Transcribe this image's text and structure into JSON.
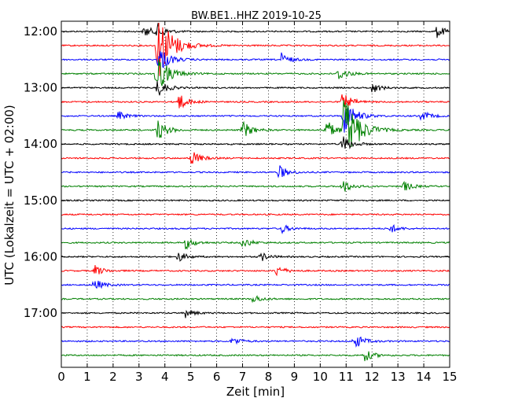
{
  "chart_data": {
    "type": "line",
    "title": "BW.BE1..HHZ 2019-10-25",
    "xlabel": "Zeit  [min]",
    "ylabel": "UTC (Lokalzeit = UTC + 02:00)",
    "xlim": [
      0,
      15
    ],
    "x_ticks": [
      "0",
      "1",
      "2",
      "3",
      "4",
      "5",
      "6",
      "7",
      "8",
      "9",
      "10",
      "11",
      "12",
      "13",
      "14",
      "15"
    ],
    "y_tick_labels": [
      "12:00",
      "13:00",
      "14:00",
      "15:00",
      "16:00",
      "17:00"
    ],
    "grid": true,
    "series_colors": [
      "#000000",
      "#ff0000",
      "#0000ff",
      "#008000"
    ],
    "traces": [
      {
        "start": "12:00",
        "events": [
          {
            "x": 3.2,
            "amp": 0.35
          },
          {
            "x": 3.7,
            "amp": 0.4
          },
          {
            "x": 14.5,
            "amp": 0.35
          }
        ]
      },
      {
        "start": "12:15",
        "events": [
          {
            "x": 3.7,
            "amp": 2.0
          }
        ]
      },
      {
        "start": "12:30",
        "events": [
          {
            "x": 3.75,
            "amp": 0.8
          },
          {
            "x": 8.5,
            "amp": 0.35
          }
        ]
      },
      {
        "start": "12:45",
        "events": [
          {
            "x": 3.65,
            "amp": 1.2
          },
          {
            "x": 10.7,
            "amp": 0.4
          }
        ]
      },
      {
        "start": "13:00",
        "events": [
          {
            "x": 3.7,
            "amp": 0.5
          },
          {
            "x": 12.0,
            "amp": 0.3
          }
        ]
      },
      {
        "start": "13:15",
        "events": [
          {
            "x": 4.5,
            "amp": 0.5
          },
          {
            "x": 10.85,
            "amp": 0.5
          }
        ]
      },
      {
        "start": "13:30",
        "events": [
          {
            "x": 2.2,
            "amp": 0.25
          },
          {
            "x": 10.9,
            "amp": 1.0
          },
          {
            "x": 13.9,
            "amp": 0.3
          }
        ]
      },
      {
        "start": "13:45",
        "events": [
          {
            "x": 3.7,
            "amp": 0.6
          },
          {
            "x": 7.0,
            "amp": 0.5
          },
          {
            "x": 10.2,
            "amp": 0.6
          },
          {
            "x": 10.9,
            "amp": 2.0
          }
        ]
      },
      {
        "start": "14:00",
        "events": [
          {
            "x": 10.85,
            "amp": 0.5
          }
        ]
      },
      {
        "start": "14:15",
        "events": [
          {
            "x": 5.0,
            "amp": 0.45
          }
        ]
      },
      {
        "start": "14:30",
        "events": [
          {
            "x": 8.4,
            "amp": 0.4
          }
        ]
      },
      {
        "start": "14:45",
        "events": [
          {
            "x": 10.85,
            "amp": 0.4
          },
          {
            "x": 13.2,
            "amp": 0.3
          }
        ]
      },
      {
        "start": "15:00",
        "events": []
      },
      {
        "start": "15:15",
        "events": []
      },
      {
        "start": "15:30",
        "events": [
          {
            "x": 8.5,
            "amp": 0.25
          },
          {
            "x": 12.7,
            "amp": 0.25
          }
        ]
      },
      {
        "start": "15:45",
        "events": [
          {
            "x": 4.8,
            "amp": 0.35
          },
          {
            "x": 7.0,
            "amp": 0.3
          }
        ]
      },
      {
        "start": "16:00",
        "events": [
          {
            "x": 4.5,
            "amp": 0.3
          },
          {
            "x": 7.7,
            "amp": 0.25
          }
        ]
      },
      {
        "start": "16:15",
        "events": [
          {
            "x": 1.3,
            "amp": 0.3
          },
          {
            "x": 8.3,
            "amp": 0.3
          }
        ]
      },
      {
        "start": "16:30",
        "events": [
          {
            "x": 1.25,
            "amp": 0.35
          }
        ]
      },
      {
        "start": "16:45",
        "events": [
          {
            "x": 7.4,
            "amp": 0.25
          }
        ]
      },
      {
        "start": "17:00",
        "events": [
          {
            "x": 4.8,
            "amp": 0.25
          }
        ]
      },
      {
        "start": "17:15",
        "events": []
      },
      {
        "start": "17:30",
        "events": [
          {
            "x": 6.6,
            "amp": 0.25
          },
          {
            "x": 11.3,
            "amp": 0.45
          }
        ]
      },
      {
        "start": "17:45",
        "events": [
          {
            "x": 11.7,
            "amp": 0.35
          }
        ]
      }
    ]
  }
}
